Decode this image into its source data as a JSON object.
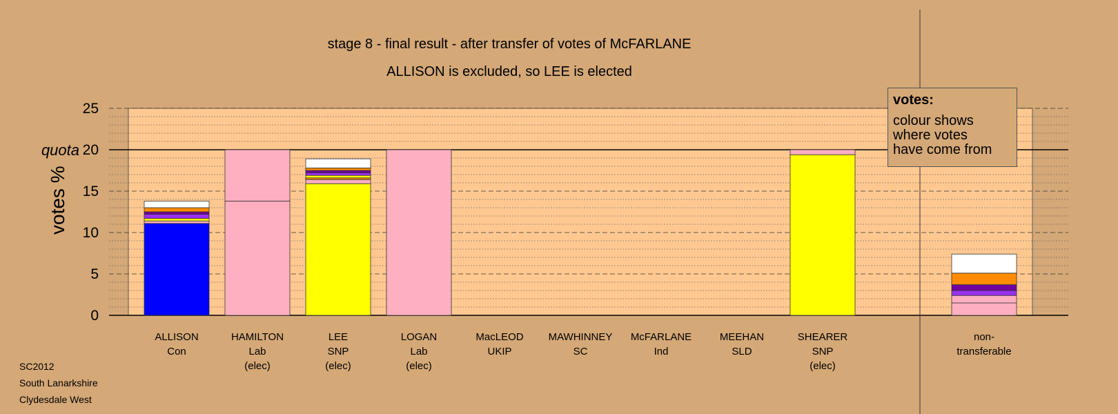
{
  "titles": {
    "line1": "stage 8 - final result - after transfer of votes of McFARLANE",
    "line2": "ALLISON is excluded, so LEE is elected"
  },
  "footer": {
    "line1": "SC2012",
    "line2": "South Lanarkshire",
    "line3": "Clydesdale West"
  },
  "legend": {
    "heading": "votes:",
    "text_line1": "colour shows",
    "text_line2": "where votes",
    "text_line3": "have come from"
  },
  "candidates": [
    {
      "name": "ALLISON",
      "party": "Con",
      "status": ""
    },
    {
      "name": "HAMILTON",
      "party": "Lab",
      "status": "(elec)"
    },
    {
      "name": "LEE",
      "party": "SNP",
      "status": "(elec)"
    },
    {
      "name": "LOGAN",
      "party": "Lab",
      "status": "(elec)"
    },
    {
      "name": "MacLEOD",
      "party": "UKIP",
      "status": ""
    },
    {
      "name": "MAWHINNEY",
      "party": "SC",
      "status": ""
    },
    {
      "name": "McFARLANE",
      "party": "Ind",
      "status": ""
    },
    {
      "name": "MEEHAN",
      "party": "SLD",
      "status": ""
    },
    {
      "name": "SHEARER",
      "party": "SNP",
      "status": "(elec)"
    },
    {
      "name": "non-",
      "party": "transferable",
      "status": ""
    }
  ],
  "chart_data": {
    "type": "bar",
    "stacked": true,
    "title": "stage 8 - final result - after transfer of votes of McFARLANE",
    "subtitle": "ALLISON is excluded, so LEE is elected",
    "ylabel": "votes %",
    "ylim": [
      0,
      25
    ],
    "yticks": [
      "0",
      "5",
      "10",
      "15",
      "20",
      "25"
    ],
    "quota_label": "quota",
    "quota": 20,
    "grid": true,
    "categories": [
      "ALLISON",
      "HAMILTON",
      "LEE",
      "LOGAN",
      "MacLEOD",
      "MAWHINNEY",
      "McFARLANE",
      "MEEHAN",
      "SHEARER",
      "non-transferable"
    ],
    "colors": {
      "Con": "#0000ff",
      "Lab": "#ffb0c0",
      "SNP": "#ffff00",
      "SC": "#ff8c00",
      "UKIP": "#7000a0",
      "SLD": "#9a30f0",
      "Ind": "#ffffff",
      "background": "#d4a877",
      "plot": "#ffc890"
    },
    "bars": [
      {
        "category": "ALLISON",
        "segments": [
          {
            "from": "Con",
            "value": 11.1
          },
          {
            "from": "Lab",
            "value": 0.3
          },
          {
            "from": "SNP",
            "value": 0.3
          },
          {
            "from": "SLD",
            "value": 0.5
          },
          {
            "from": "UKIP",
            "value": 0.3
          },
          {
            "from": "SC",
            "value": 0.5
          },
          {
            "from": "Ind",
            "value": 0.8
          }
        ]
      },
      {
        "category": "HAMILTON",
        "segments": [
          {
            "from": "Lab",
            "value": 13.8
          },
          {
            "from": "Lab",
            "value": 6.2
          }
        ]
      },
      {
        "category": "LEE",
        "segments": [
          {
            "from": "SNP",
            "value": 15.9
          },
          {
            "from": "Lab",
            "value": 0.5
          },
          {
            "from": "SC",
            "value": 0.2
          },
          {
            "from": "SNP",
            "value": 0.3
          },
          {
            "from": "SLD",
            "value": 0.3
          },
          {
            "from": "UKIP",
            "value": 0.3
          },
          {
            "from": "SC",
            "value": 0.3
          },
          {
            "from": "Ind",
            "value": 1.1
          }
        ]
      },
      {
        "category": "LOGAN",
        "segments": [
          {
            "from": "Lab",
            "value": 20.0
          }
        ]
      },
      {
        "category": "MacLEOD",
        "segments": []
      },
      {
        "category": "MAWHINNEY",
        "segments": []
      },
      {
        "category": "McFARLANE",
        "segments": []
      },
      {
        "category": "MEEHAN",
        "segments": []
      },
      {
        "category": "SHEARER",
        "segments": [
          {
            "from": "SNP",
            "value": 19.4
          },
          {
            "from": "Lab",
            "value": 0.6
          }
        ]
      },
      {
        "category": "non-transferable",
        "segments": [
          {
            "from": "Lab",
            "value": 1.5
          },
          {
            "from": "Lab",
            "value": 0.9
          },
          {
            "from": "SLD",
            "value": 0.6
          },
          {
            "from": "UKIP",
            "value": 0.7
          },
          {
            "from": "SC",
            "value": 1.4
          },
          {
            "from": "Ind",
            "value": 2.3
          }
        ]
      }
    ]
  }
}
